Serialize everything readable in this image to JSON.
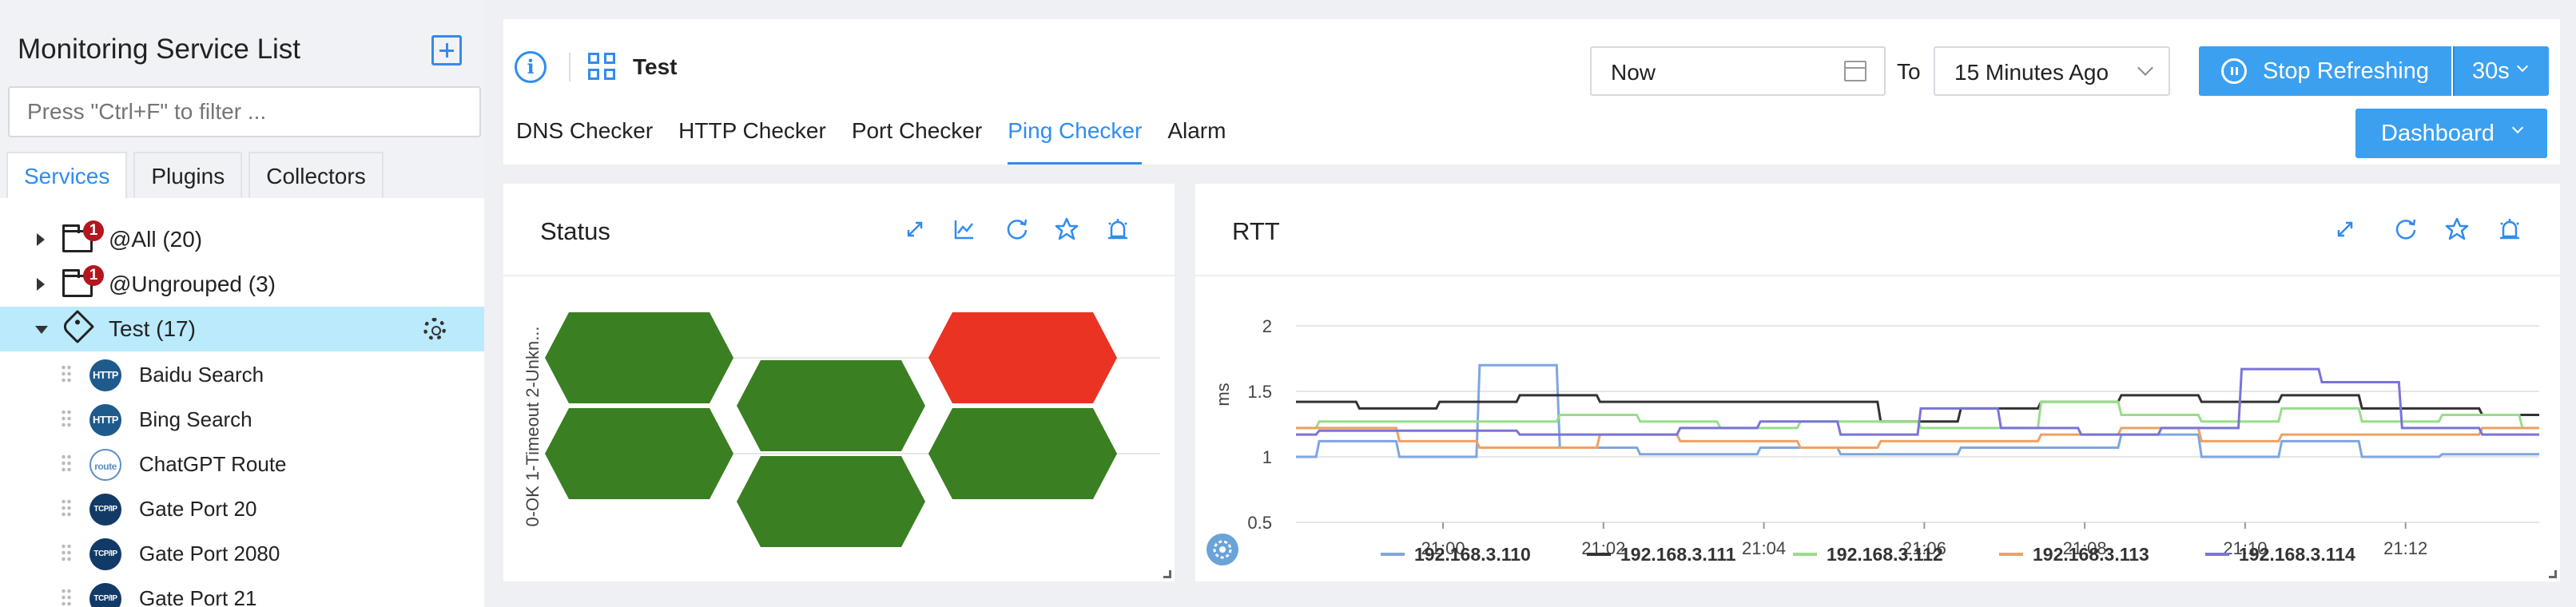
{
  "sidebar": {
    "title": "Monitoring Service List",
    "filter_placeholder": "Press \"Ctrl+F\" to filter ...",
    "tabs": [
      "Services",
      "Plugins",
      "Collectors"
    ],
    "groups": [
      {
        "label": "@All (20)",
        "badge": "1"
      },
      {
        "label": "@Ungrouped (3)",
        "badge": "1"
      },
      {
        "label": "Test (17)"
      }
    ],
    "services": [
      {
        "label": "Baidu Search",
        "icon": "HTTP"
      },
      {
        "label": "Bing Search",
        "icon": "HTTP"
      },
      {
        "label": "ChatGPT Route",
        "icon": "route"
      },
      {
        "label": "Gate Port 20",
        "icon": "TCP/IP"
      },
      {
        "label": "Gate Port 2080",
        "icon": "TCP/IP"
      },
      {
        "label": "Gate Port 21",
        "icon": "TCP/IP"
      }
    ]
  },
  "header": {
    "title": "Test",
    "time_from": "Now",
    "to_label": "To",
    "time_to": "15 Minutes Ago",
    "stop_label": "Stop Refreshing",
    "interval": "30s",
    "dashboard_label": "Dashboard",
    "tabs": [
      "DNS Checker",
      "HTTP Checker",
      "Port Checker",
      "Ping Checker",
      "Alarm"
    ],
    "active_tab": "Ping Checker"
  },
  "status_panel": {
    "title": "Status",
    "legend_axis": "0-OK 1-Timeout 2-Unkn...",
    "colors": {
      "ok": "#3a7f22",
      "timeout": "#ea3323"
    },
    "cells": [
      0,
      0,
      1,
      0,
      0,
      0,
      0
    ]
  },
  "rtt_panel": {
    "title": "RTT",
    "chart_data": {
      "type": "line",
      "ylabel": "ms",
      "ylim": [
        0.5,
        2
      ],
      "yticks": [
        "0.5",
        "1",
        "1.5",
        "2"
      ],
      "xlim": [
        "20:58:10",
        "21:13:40"
      ],
      "xticks": [
        "21:00",
        "21:02",
        "21:04",
        "21:06",
        "21:08",
        "21:10",
        "21:12"
      ],
      "x": [
        "20:58:10",
        "20:58:40",
        "20:59:10",
        "20:59:40",
        "21:00:10",
        "21:00:40",
        "21:01:10",
        "21:01:40",
        "21:02:10",
        "21:02:40",
        "21:03:10",
        "21:03:40",
        "21:04:10",
        "21:04:40",
        "21:05:10",
        "21:05:40",
        "21:06:10",
        "21:06:40",
        "21:07:10",
        "21:07:40",
        "21:08:10",
        "21:08:40",
        "21:09:10",
        "21:09:40",
        "21:10:10",
        "21:10:40",
        "21:11:10",
        "21:11:40",
        "21:12:10",
        "21:12:40",
        "21:13:10",
        "21:13:40"
      ],
      "series": [
        {
          "name": "192.168.3.110",
          "color": "#7fa6de",
          "values": [
            1.0,
            1.12,
            1.12,
            1.0,
            1.0,
            1.7,
            1.7,
            1.07,
            1.07,
            1.02,
            1.02,
            1.02,
            1.07,
            1.07,
            1.02,
            1.02,
            1.02,
            1.07,
            1.07,
            1.07,
            1.07,
            1.17,
            1.17,
            1.0,
            1.0,
            1.12,
            1.12,
            1.0,
            1.0,
            1.02,
            1.02,
            1.02
          ]
        },
        {
          "name": "192.168.3.111",
          "color": "#333333",
          "values": [
            1.42,
            1.42,
            1.37,
            1.37,
            1.42,
            1.42,
            1.47,
            1.47,
            1.42,
            1.42,
            1.42,
            1.42,
            1.42,
            1.42,
            1.42,
            1.27,
            1.27,
            1.37,
            1.37,
            1.42,
            1.42,
            1.47,
            1.47,
            1.42,
            1.42,
            1.47,
            1.47,
            1.37,
            1.37,
            1.37,
            1.32,
            1.32
          ]
        },
        {
          "name": "192.168.3.112",
          "color": "#97de8a",
          "values": [
            1.22,
            1.27,
            1.27,
            1.27,
            1.27,
            1.27,
            1.27,
            1.32,
            1.32,
            1.27,
            1.27,
            1.22,
            1.22,
            1.27,
            1.27,
            1.27,
            1.22,
            1.22,
            1.22,
            1.42,
            1.42,
            1.32,
            1.32,
            1.27,
            1.27,
            1.37,
            1.37,
            1.27,
            1.27,
            1.32,
            1.32,
            1.22
          ]
        },
        {
          "name": "192.168.3.113",
          "color": "#f0a163",
          "values": [
            1.22,
            1.22,
            1.22,
            1.12,
            1.12,
            1.07,
            1.07,
            1.07,
            1.17,
            1.17,
            1.12,
            1.12,
            1.12,
            1.07,
            1.07,
            1.12,
            1.12,
            1.12,
            1.12,
            1.17,
            1.17,
            1.22,
            1.22,
            1.12,
            1.12,
            1.17,
            1.17,
            1.17,
            1.17,
            1.17,
            1.22,
            1.22
          ]
        },
        {
          "name": "192.168.3.114",
          "color": "#7a74d8",
          "values": [
            1.17,
            1.2,
            1.2,
            1.2,
            1.2,
            1.2,
            1.17,
            1.17,
            1.17,
            1.17,
            1.22,
            1.22,
            1.27,
            1.27,
            1.17,
            1.17,
            1.37,
            1.37,
            1.22,
            1.22,
            1.17,
            1.17,
            1.22,
            1.22,
            1.67,
            1.67,
            1.57,
            1.57,
            1.22,
            1.22,
            1.17,
            1.17
          ]
        }
      ]
    }
  }
}
